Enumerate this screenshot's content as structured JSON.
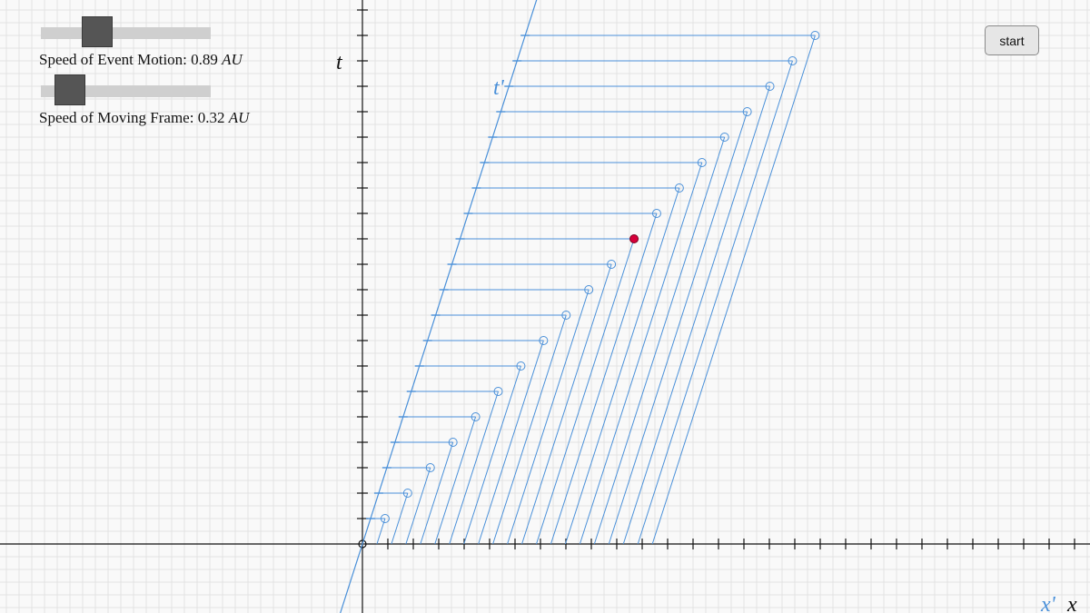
{
  "controls": {
    "event_speed": {
      "label": "Speed of Event Motion: ",
      "value": "0.89",
      "unit": "AU",
      "level": 0.89
    },
    "frame_speed": {
      "label": "Speed of Moving Frame: ",
      "value": "0.32",
      "unit": "AU",
      "level": 0.32
    },
    "start_label": "start"
  },
  "axes": {
    "t": "t",
    "t_prime": "t'",
    "x": "x",
    "x_prime": "x'"
  },
  "colors": {
    "background": "#f9f9f9",
    "grid": "#e3e3e3",
    "axis": "#111111",
    "frame_lines": "#4a90d9",
    "event_marker": "#d6003a",
    "slider_track": "#cfcfcf",
    "slider_thumb": "#555555"
  },
  "diagram": {
    "event_count": 20,
    "current_event": 12
  }
}
